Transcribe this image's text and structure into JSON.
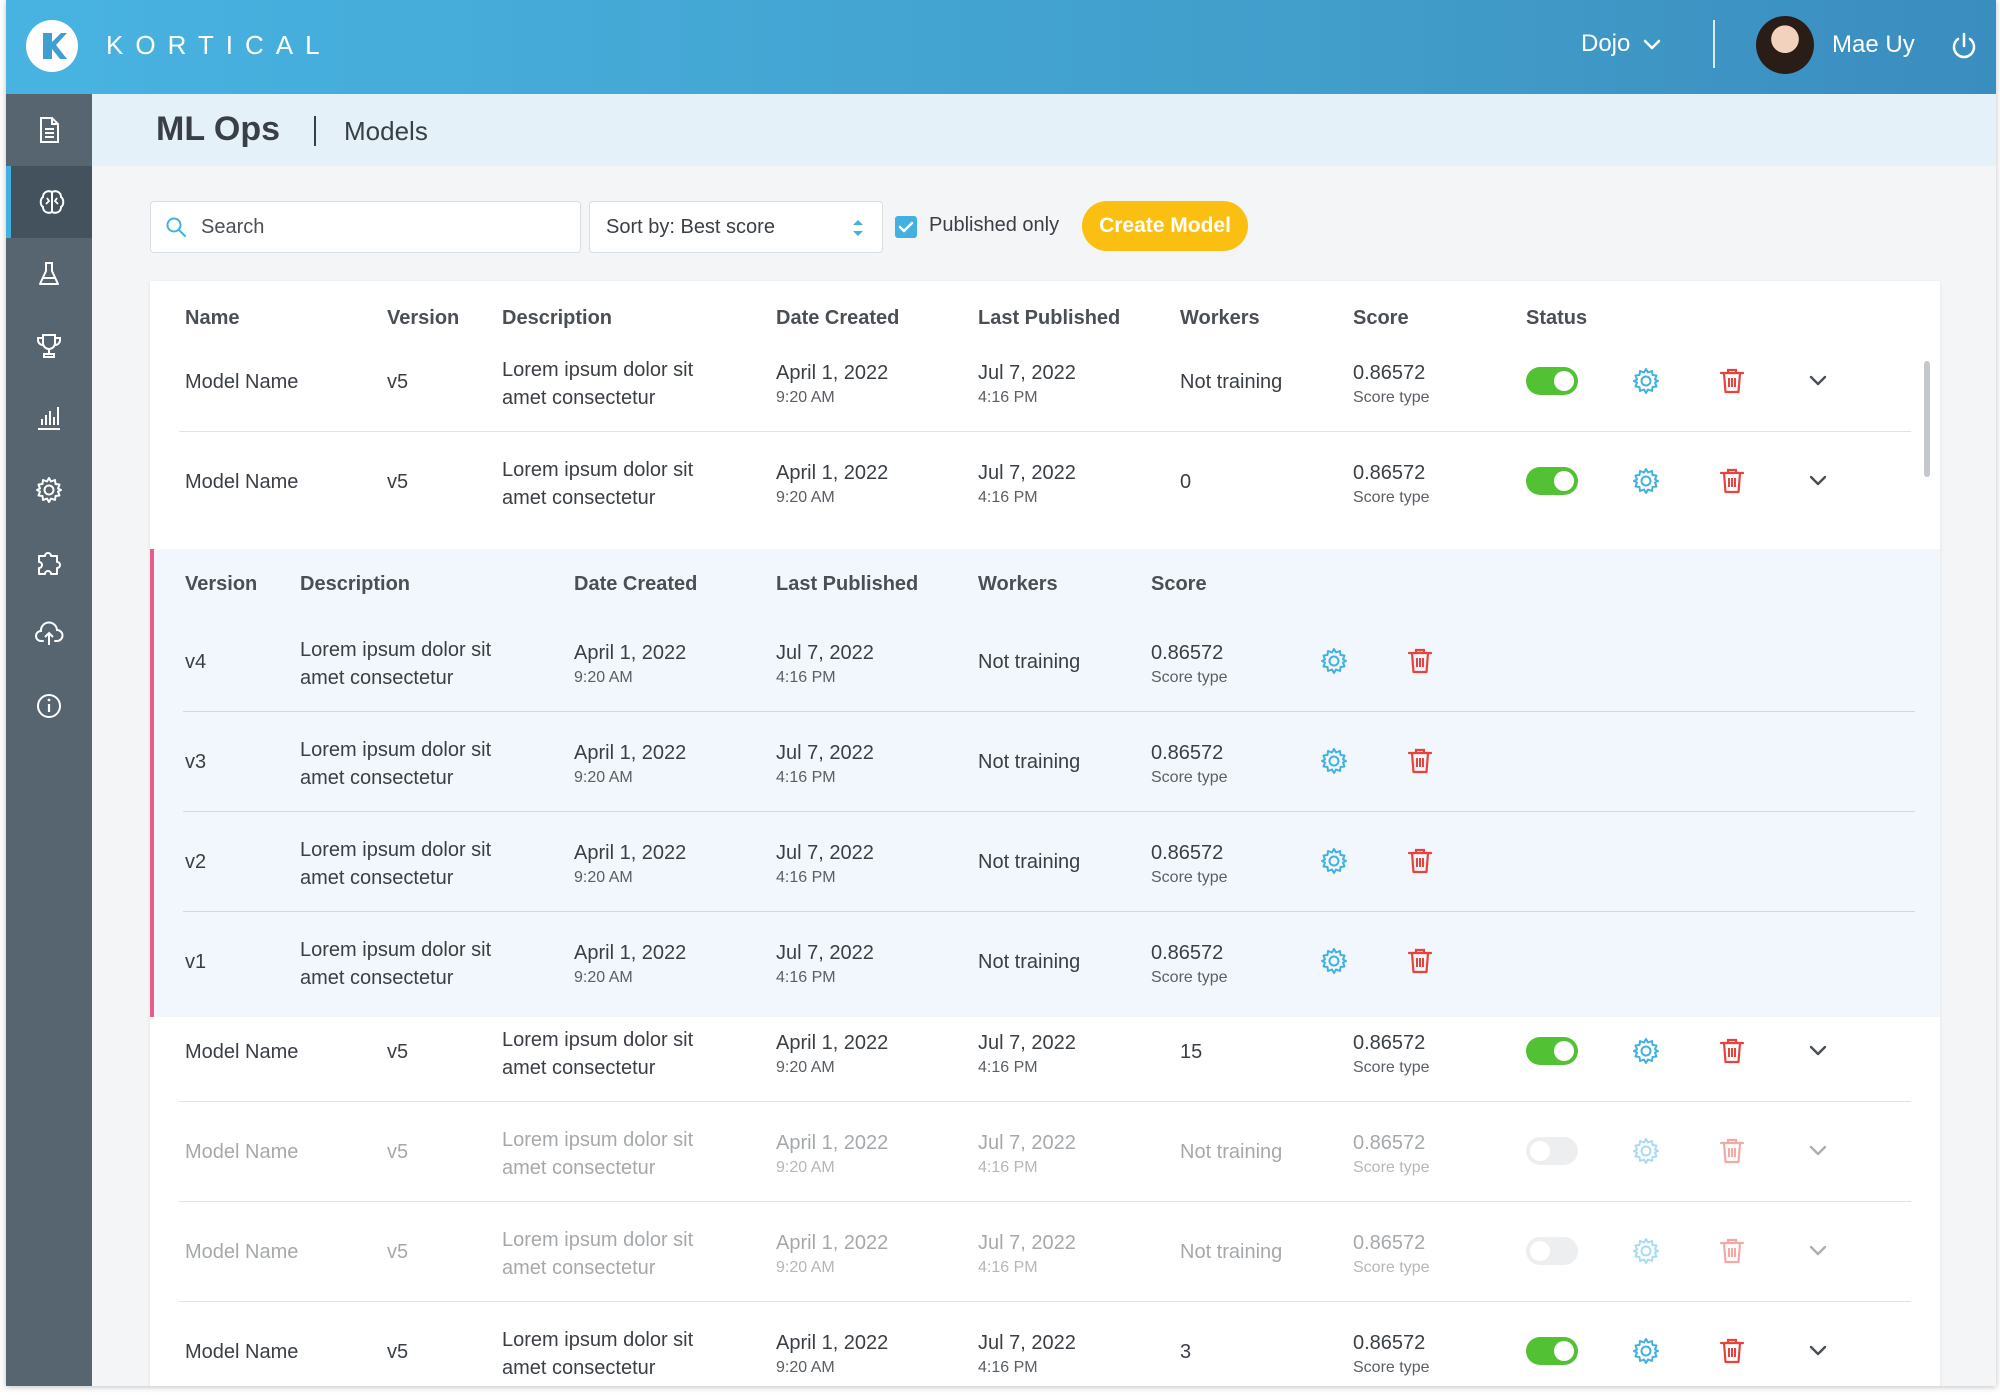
{
  "app": {
    "brand": "KORTICAL",
    "workspace": "Dojo",
    "user": "Mae Uy"
  },
  "sidebar": {
    "items": [
      {
        "icon": "document-icon",
        "active": false
      },
      {
        "icon": "brain-icon",
        "active": true
      },
      {
        "icon": "flask-icon",
        "active": false
      },
      {
        "icon": "trophy-icon",
        "active": false
      },
      {
        "icon": "bar-chart-icon",
        "active": false
      },
      {
        "icon": "gear-icon",
        "active": false
      },
      {
        "icon": "puzzle-icon",
        "active": false
      },
      {
        "icon": "cloud-upload-icon",
        "active": false
      },
      {
        "icon": "info-icon",
        "active": false
      }
    ]
  },
  "page": {
    "title": "ML Ops",
    "subtitle": "Models"
  },
  "toolbar": {
    "search_placeholder": "Search",
    "sort_label": "Sort by: Best score",
    "published_only": "Published only",
    "published_checked": true,
    "create_label": "Create Model"
  },
  "table": {
    "headers": {
      "name": "Name",
      "version": "Version",
      "description": "Description",
      "date_created": "Date Created",
      "last_published": "Last Published",
      "workers": "Workers",
      "score": "Score",
      "status": "Status"
    },
    "rows": [
      {
        "name": "Model Name",
        "version": "v5",
        "desc1": "Lorem ipsum dolor sit",
        "desc2": "amet consectetur",
        "date": "April 1, 2022",
        "time": "9:20 AM",
        "pub_date": "Jul 7, 2022",
        "pub_time": "4:16 PM",
        "workers": "Not training",
        "score": "0.86572",
        "score_type": "Score type",
        "status": "on"
      },
      {
        "name": "Model Name",
        "version": "v5",
        "desc1": "Lorem ipsum dolor sit",
        "desc2": "amet consectetur",
        "date": "April 1, 2022",
        "time": "9:20 AM",
        "pub_date": "Jul 7, 2022",
        "pub_time": "4:16 PM",
        "workers": "0",
        "score": "0.86572",
        "score_type": "Score type",
        "status": "on"
      },
      {
        "name": "Model Name",
        "version": "v5",
        "desc1": "Lorem ipsum dolor sit",
        "desc2": "amet consectetur",
        "date": "April 1, 2022",
        "time": "9:20 AM",
        "pub_date": "Jul 7, 2022",
        "pub_time": "4:16 PM",
        "workers": "15",
        "score": "0.86572",
        "score_type": "Score type",
        "status": "on"
      },
      {
        "name": "Model Name",
        "version": "v5",
        "desc1": "Lorem ipsum dolor sit",
        "desc2": "amet consectetur",
        "date": "April 1, 2022",
        "time": "9:20 AM",
        "pub_date": "Jul 7, 2022",
        "pub_time": "4:16 PM",
        "workers": "Not training",
        "score": "0.86572",
        "score_type": "Score type",
        "status": "off"
      },
      {
        "name": "Model Name",
        "version": "v5",
        "desc1": "Lorem ipsum dolor sit",
        "desc2": "amet consectetur",
        "date": "April 1, 2022",
        "time": "9:20 AM",
        "pub_date": "Jul 7, 2022",
        "pub_time": "4:16 PM",
        "workers": "Not training",
        "score": "0.86572",
        "score_type": "Score type",
        "status": "off"
      },
      {
        "name": "Model Name",
        "version": "v5",
        "desc1": "Lorem ipsum dolor sit",
        "desc2": "amet consectetur",
        "date": "April 1, 2022",
        "time": "9:20 AM",
        "pub_date": "Jul 7, 2022",
        "pub_time": "4:16 PM",
        "workers": "3",
        "score": "0.86572",
        "score_type": "Score type",
        "status": "on"
      }
    ]
  },
  "versions": {
    "headers": {
      "version": "Version",
      "description": "Description",
      "date_created": "Date Created",
      "last_published": "Last Published",
      "workers": "Workers",
      "score": "Score"
    },
    "rows": [
      {
        "version": "v4",
        "desc1": "Lorem ipsum dolor sit",
        "desc2": "amet consectetur",
        "date": "April 1, 2022",
        "time": "9:20 AM",
        "pub_date": "Jul 7, 2022",
        "pub_time": "4:16 PM",
        "workers": "Not training",
        "score": "0.86572",
        "score_type": "Score type"
      },
      {
        "version": "v3",
        "desc1": "Lorem ipsum dolor sit",
        "desc2": "amet consectetur",
        "date": "April 1, 2022",
        "time": "9:20 AM",
        "pub_date": "Jul 7, 2022",
        "pub_time": "4:16 PM",
        "workers": "Not training",
        "score": "0.86572",
        "score_type": "Score type"
      },
      {
        "version": "v2",
        "desc1": "Lorem ipsum dolor sit",
        "desc2": "amet consectetur",
        "date": "April 1, 2022",
        "time": "9:20 AM",
        "pub_date": "Jul 7, 2022",
        "pub_time": "4:16 PM",
        "workers": "Not training",
        "score": "0.86572",
        "score_type": "Score type"
      },
      {
        "version": "v1",
        "desc1": "Lorem ipsum dolor sit",
        "desc2": "amet consectetur",
        "date": "April 1, 2022",
        "time": "9:20 AM",
        "pub_date": "Jul 7, 2022",
        "pub_time": "4:16 PM",
        "workers": "Not training",
        "score": "0.86572",
        "score_type": "Score type"
      }
    ]
  },
  "colors": {
    "accent": "#42b0e0",
    "create_button": "#fbbf12",
    "toggle_on": "#52c234",
    "delete": "#e8423c",
    "expanded_marker": "#e85b8b"
  }
}
